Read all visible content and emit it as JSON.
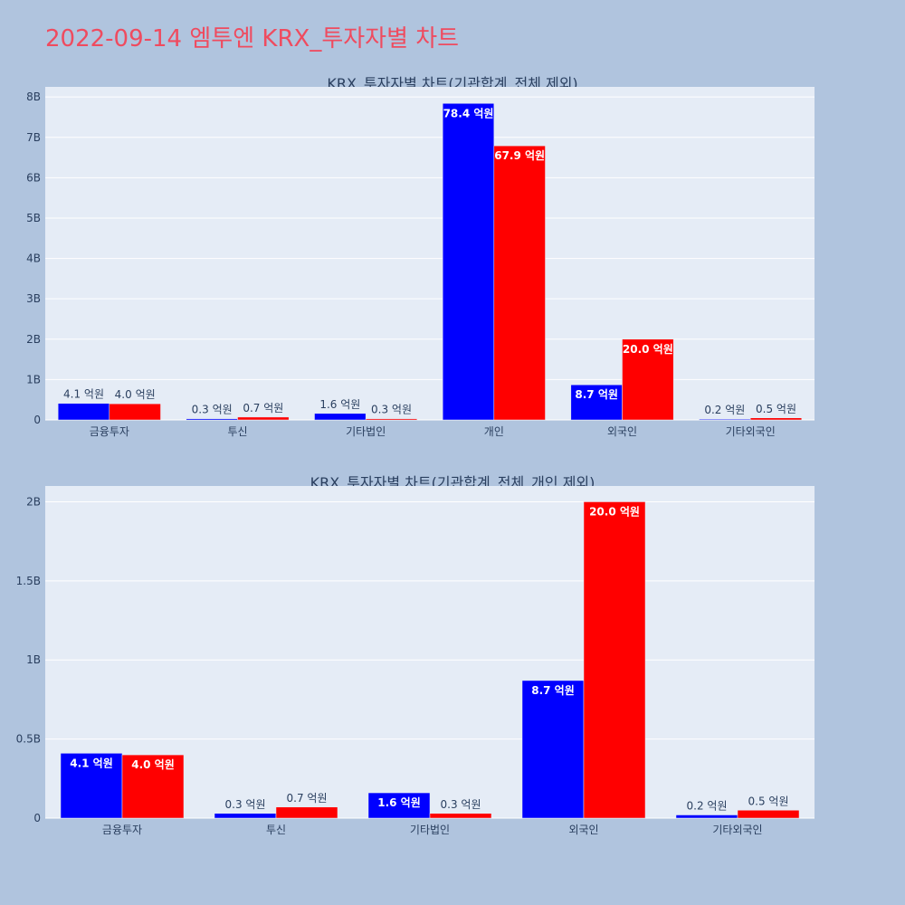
{
  "title": "2022-09-14 엠투엔 KRX_투자자별 차트",
  "colors": {
    "series_a": "#0000ff",
    "series_b": "#ff0000",
    "plot_bg": "#e5ecf6",
    "grid": "#ffffff",
    "text": "#2a3f5f"
  },
  "chart_data": [
    {
      "type": "bar",
      "title": "KRX_투자자별 차트(기관합계_전체 제외)",
      "categories": [
        "금융투자",
        "투신",
        "기타법인",
        "개인",
        "외국인",
        "기타외국인"
      ],
      "series": [
        {
          "values": [
            0.41,
            0.03,
            0.16,
            7.84,
            0.87,
            0.02
          ],
          "labels": [
            "4.1 억원",
            "0.3 억원",
            "1.6 억원",
            "78.4 억원",
            "8.7 억원",
            "0.2 억원"
          ]
        },
        {
          "values": [
            0.4,
            0.07,
            0.03,
            6.79,
            2.0,
            0.05
          ],
          "labels": [
            "4.0 억원",
            "0.7 억원",
            "0.3 억원",
            "67.9 억원",
            "20.0 억원",
            "0.5 억원"
          ]
        }
      ],
      "ylim": [
        0,
        8.25
      ],
      "yticks": [
        0,
        1,
        2,
        3,
        4,
        5,
        6,
        7,
        8
      ],
      "ytick_labels": [
        "0",
        "1B",
        "2B",
        "3B",
        "4B",
        "5B",
        "6B",
        "7B",
        "8B"
      ]
    },
    {
      "type": "bar",
      "title": "KRX_투자자별 차트(기관합계_전체_개인 제외)",
      "categories": [
        "금융투자",
        "투신",
        "기타법인",
        "외국인",
        "기타외국인"
      ],
      "series": [
        {
          "values": [
            0.41,
            0.03,
            0.16,
            0.87,
            0.02
          ],
          "labels": [
            "4.1 억원",
            "0.3 억원",
            "1.6 억원",
            "8.7 억원",
            "0.2 억원"
          ]
        },
        {
          "values": [
            0.4,
            0.07,
            0.03,
            2.0,
            0.05
          ],
          "labels": [
            "4.0 억원",
            "0.7 억원",
            "0.3 억원",
            "20.0 억원",
            "0.5 억원"
          ]
        }
      ],
      "ylim": [
        0,
        2.1
      ],
      "yticks": [
        0,
        0.5,
        1,
        1.5,
        2
      ],
      "ytick_labels": [
        "0",
        "0.5B",
        "1B",
        "1.5B",
        "2B"
      ]
    }
  ]
}
